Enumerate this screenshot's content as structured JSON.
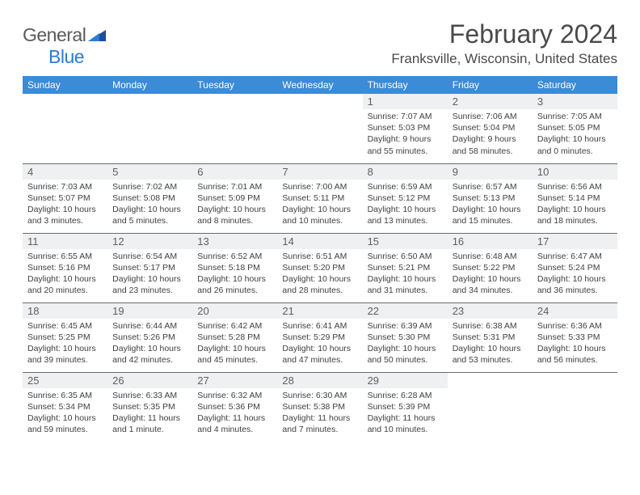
{
  "logo": {
    "general": "General",
    "blue": "Blue"
  },
  "title": "February 2024",
  "location": "Franksville, Wisconsin, United States",
  "colors": {
    "header_bg": "#3b8bd6",
    "header_text": "#ffffff",
    "daynum_bg": "#eef0f2",
    "border": "#6b6b6b",
    "text": "#404040",
    "title_text": "#4a4a4a",
    "logo_gray": "#5a5a5a",
    "logo_blue": "#2b7cd3"
  },
  "weekdays": [
    "Sunday",
    "Monday",
    "Tuesday",
    "Wednesday",
    "Thursday",
    "Friday",
    "Saturday"
  ],
  "weeks": [
    [
      null,
      null,
      null,
      null,
      {
        "n": "1",
        "sr": "Sunrise: 7:07 AM",
        "ss": "Sunset: 5:03 PM",
        "dl": "Daylight: 9 hours and 55 minutes."
      },
      {
        "n": "2",
        "sr": "Sunrise: 7:06 AM",
        "ss": "Sunset: 5:04 PM",
        "dl": "Daylight: 9 hours and 58 minutes."
      },
      {
        "n": "3",
        "sr": "Sunrise: 7:05 AM",
        "ss": "Sunset: 5:05 PM",
        "dl": "Daylight: 10 hours and 0 minutes."
      }
    ],
    [
      {
        "n": "4",
        "sr": "Sunrise: 7:03 AM",
        "ss": "Sunset: 5:07 PM",
        "dl": "Daylight: 10 hours and 3 minutes."
      },
      {
        "n": "5",
        "sr": "Sunrise: 7:02 AM",
        "ss": "Sunset: 5:08 PM",
        "dl": "Daylight: 10 hours and 5 minutes."
      },
      {
        "n": "6",
        "sr": "Sunrise: 7:01 AM",
        "ss": "Sunset: 5:09 PM",
        "dl": "Daylight: 10 hours and 8 minutes."
      },
      {
        "n": "7",
        "sr": "Sunrise: 7:00 AM",
        "ss": "Sunset: 5:11 PM",
        "dl": "Daylight: 10 hours and 10 minutes."
      },
      {
        "n": "8",
        "sr": "Sunrise: 6:59 AM",
        "ss": "Sunset: 5:12 PM",
        "dl": "Daylight: 10 hours and 13 minutes."
      },
      {
        "n": "9",
        "sr": "Sunrise: 6:57 AM",
        "ss": "Sunset: 5:13 PM",
        "dl": "Daylight: 10 hours and 15 minutes."
      },
      {
        "n": "10",
        "sr": "Sunrise: 6:56 AM",
        "ss": "Sunset: 5:14 PM",
        "dl": "Daylight: 10 hours and 18 minutes."
      }
    ],
    [
      {
        "n": "11",
        "sr": "Sunrise: 6:55 AM",
        "ss": "Sunset: 5:16 PM",
        "dl": "Daylight: 10 hours and 20 minutes."
      },
      {
        "n": "12",
        "sr": "Sunrise: 6:54 AM",
        "ss": "Sunset: 5:17 PM",
        "dl": "Daylight: 10 hours and 23 minutes."
      },
      {
        "n": "13",
        "sr": "Sunrise: 6:52 AM",
        "ss": "Sunset: 5:18 PM",
        "dl": "Daylight: 10 hours and 26 minutes."
      },
      {
        "n": "14",
        "sr": "Sunrise: 6:51 AM",
        "ss": "Sunset: 5:20 PM",
        "dl": "Daylight: 10 hours and 28 minutes."
      },
      {
        "n": "15",
        "sr": "Sunrise: 6:50 AM",
        "ss": "Sunset: 5:21 PM",
        "dl": "Daylight: 10 hours and 31 minutes."
      },
      {
        "n": "16",
        "sr": "Sunrise: 6:48 AM",
        "ss": "Sunset: 5:22 PM",
        "dl": "Daylight: 10 hours and 34 minutes."
      },
      {
        "n": "17",
        "sr": "Sunrise: 6:47 AM",
        "ss": "Sunset: 5:24 PM",
        "dl": "Daylight: 10 hours and 36 minutes."
      }
    ],
    [
      {
        "n": "18",
        "sr": "Sunrise: 6:45 AM",
        "ss": "Sunset: 5:25 PM",
        "dl": "Daylight: 10 hours and 39 minutes."
      },
      {
        "n": "19",
        "sr": "Sunrise: 6:44 AM",
        "ss": "Sunset: 5:26 PM",
        "dl": "Daylight: 10 hours and 42 minutes."
      },
      {
        "n": "20",
        "sr": "Sunrise: 6:42 AM",
        "ss": "Sunset: 5:28 PM",
        "dl": "Daylight: 10 hours and 45 minutes."
      },
      {
        "n": "21",
        "sr": "Sunrise: 6:41 AM",
        "ss": "Sunset: 5:29 PM",
        "dl": "Daylight: 10 hours and 47 minutes."
      },
      {
        "n": "22",
        "sr": "Sunrise: 6:39 AM",
        "ss": "Sunset: 5:30 PM",
        "dl": "Daylight: 10 hours and 50 minutes."
      },
      {
        "n": "23",
        "sr": "Sunrise: 6:38 AM",
        "ss": "Sunset: 5:31 PM",
        "dl": "Daylight: 10 hours and 53 minutes."
      },
      {
        "n": "24",
        "sr": "Sunrise: 6:36 AM",
        "ss": "Sunset: 5:33 PM",
        "dl": "Daylight: 10 hours and 56 minutes."
      }
    ],
    [
      {
        "n": "25",
        "sr": "Sunrise: 6:35 AM",
        "ss": "Sunset: 5:34 PM",
        "dl": "Daylight: 10 hours and 59 minutes."
      },
      {
        "n": "26",
        "sr": "Sunrise: 6:33 AM",
        "ss": "Sunset: 5:35 PM",
        "dl": "Daylight: 11 hours and 1 minute."
      },
      {
        "n": "27",
        "sr": "Sunrise: 6:32 AM",
        "ss": "Sunset: 5:36 PM",
        "dl": "Daylight: 11 hours and 4 minutes."
      },
      {
        "n": "28",
        "sr": "Sunrise: 6:30 AM",
        "ss": "Sunset: 5:38 PM",
        "dl": "Daylight: 11 hours and 7 minutes."
      },
      {
        "n": "29",
        "sr": "Sunrise: 6:28 AM",
        "ss": "Sunset: 5:39 PM",
        "dl": "Daylight: 11 hours and 10 minutes."
      },
      null,
      null
    ]
  ]
}
